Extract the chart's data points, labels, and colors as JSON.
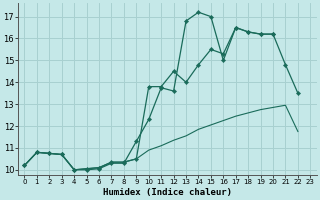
{
  "xlabel": "Humidex (Indice chaleur)",
  "xlim": [
    -0.5,
    23.5
  ],
  "ylim": [
    9.75,
    17.6
  ],
  "yticks": [
    10,
    11,
    12,
    13,
    14,
    15,
    16,
    17
  ],
  "xticks": [
    0,
    1,
    2,
    3,
    4,
    5,
    6,
    7,
    8,
    9,
    10,
    11,
    12,
    13,
    14,
    15,
    16,
    17,
    18,
    19,
    20,
    21,
    22,
    23
  ],
  "bg_color": "#c5e8e8",
  "grid_color": "#a8d0d0",
  "line_color": "#1a6b5a",
  "curve1_x": [
    0,
    1,
    2,
    3,
    4,
    5,
    6,
    7,
    8,
    9,
    10,
    11,
    12,
    13,
    14,
    15,
    16,
    17,
    18,
    19,
    20,
    21,
    22
  ],
  "curve1_y": [
    10.2,
    10.8,
    10.75,
    10.7,
    10.0,
    10.0,
    10.05,
    10.3,
    10.3,
    11.3,
    12.3,
    13.75,
    13.6,
    16.8,
    17.2,
    17.0,
    15.0,
    16.5,
    16.3,
    16.2,
    16.2,
    14.8,
    13.5
  ],
  "curve2_x": [
    0,
    1,
    2,
    3,
    4,
    5,
    6,
    7,
    8,
    9,
    10,
    11,
    12,
    13,
    14,
    15,
    16,
    17,
    18,
    19,
    20
  ],
  "curve2_y": [
    10.2,
    10.8,
    10.75,
    10.7,
    10.0,
    10.05,
    10.1,
    10.35,
    10.35,
    10.5,
    13.8,
    13.8,
    14.5,
    14.0,
    14.8,
    15.5,
    15.3,
    16.5,
    16.3,
    16.2,
    16.2
  ],
  "curve3_x": [
    0,
    1,
    2,
    3,
    4,
    5,
    6,
    7,
    8,
    9,
    10,
    11,
    12,
    13,
    14,
    15,
    16,
    17,
    18,
    19,
    20,
    21,
    22,
    23
  ],
  "curve3_y": [
    10.2,
    10.8,
    10.75,
    10.7,
    10.0,
    10.05,
    10.1,
    10.35,
    10.35,
    10.5,
    10.9,
    11.1,
    11.35,
    11.55,
    11.85,
    12.05,
    12.25,
    12.45,
    12.6,
    12.75,
    12.85,
    12.95,
    11.75,
    null
  ]
}
